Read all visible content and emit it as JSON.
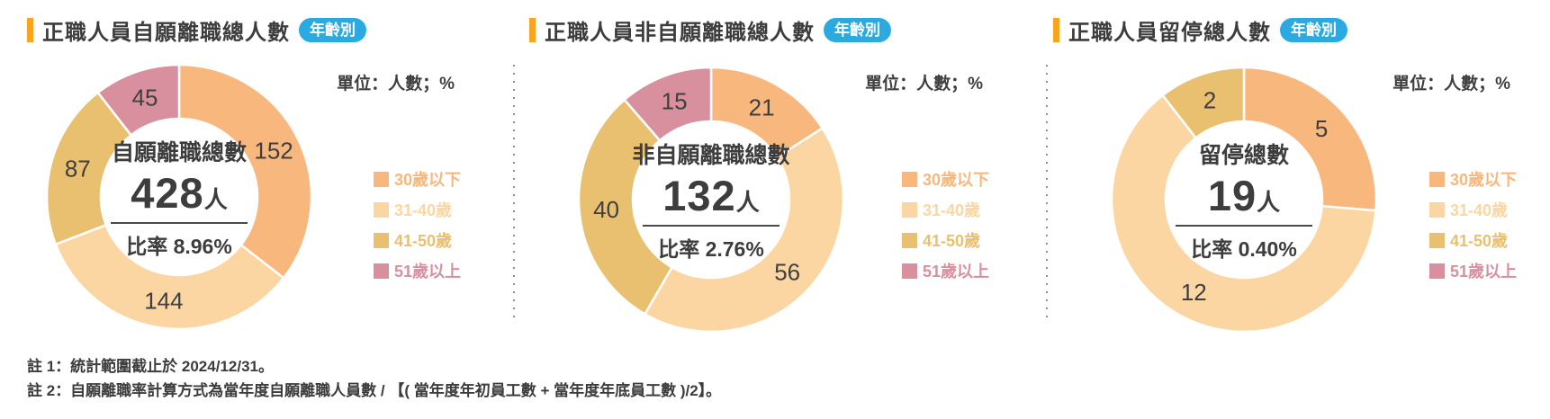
{
  "page": {
    "badge_label": "年齡別",
    "unit_label": "單位：人數；%",
    "notes": [
      "註 1：統計範圍截止於 2024/12/31。",
      "註 2：自願離職率計算方式為當年度自願離職人員數 / 【( 當年度年初員工數 + 當年度年底員工數 )/2】。"
    ]
  },
  "colors": {
    "accent_bar": "#f7a51f",
    "badge_bg": "#2baae1",
    "badge_text": "#ffffff",
    "text_dark": "#3d3d3d",
    "age_under_30": "#f8b77d",
    "age_31_40": "#fbd6a3",
    "age_41_50": "#e9bf70",
    "age_over_51": "#d9909e"
  },
  "legend": [
    {
      "label": "30歲以下",
      "color": "#f8b77d"
    },
    {
      "label": "31-40歲",
      "color": "#fbd6a3"
    },
    {
      "label": "41-50歲",
      "color": "#e9bf70"
    },
    {
      "label": "51歲以上",
      "color": "#d9909e"
    }
  ],
  "chart_data": [
    {
      "type": "pie",
      "subtype": "donut",
      "title": "正職人員自願離職總人數",
      "badge": "年齡別",
      "unit_note": "單位：人數；%",
      "categories": [
        "30歲以下",
        "31-40歲",
        "41-50歲",
        "51歲以上"
      ],
      "values": [
        152,
        144,
        87,
        45
      ],
      "colors": [
        "#f8b77d",
        "#fbd6a3",
        "#e9bf70",
        "#d9909e"
      ],
      "center_label": "自願離職總數",
      "total": "428",
      "total_unit": "人",
      "ratio": "比率 8.96%",
      "legend_position": "right"
    },
    {
      "type": "pie",
      "subtype": "donut",
      "title": "正職人員非自願離職總人數",
      "badge": "年齡別",
      "unit_note": "單位：人數；%",
      "categories": [
        "30歲以下",
        "31-40歲",
        "41-50歲",
        "51歲以上"
      ],
      "values": [
        21,
        56,
        40,
        15
      ],
      "colors": [
        "#f8b77d",
        "#fbd6a3",
        "#e9bf70",
        "#d9909e"
      ],
      "center_label": "非自願離職總數",
      "total": "132",
      "total_unit": "人",
      "ratio": "比率 2.76%",
      "legend_position": "right"
    },
    {
      "type": "pie",
      "subtype": "donut",
      "title": "正職人員留停總人數",
      "badge": "年齡別",
      "unit_note": "單位：人數；%",
      "categories": [
        "30歲以下",
        "31-40歲",
        "41-50歲",
        "51歲以上"
      ],
      "values": [
        5,
        12,
        2,
        0
      ],
      "colors": [
        "#f8b77d",
        "#fbd6a3",
        "#e9bf70",
        "#d9909e"
      ],
      "center_label": "留停總數",
      "total": "19",
      "total_unit": "人",
      "ratio": "比率 0.40%",
      "legend_position": "right"
    }
  ]
}
